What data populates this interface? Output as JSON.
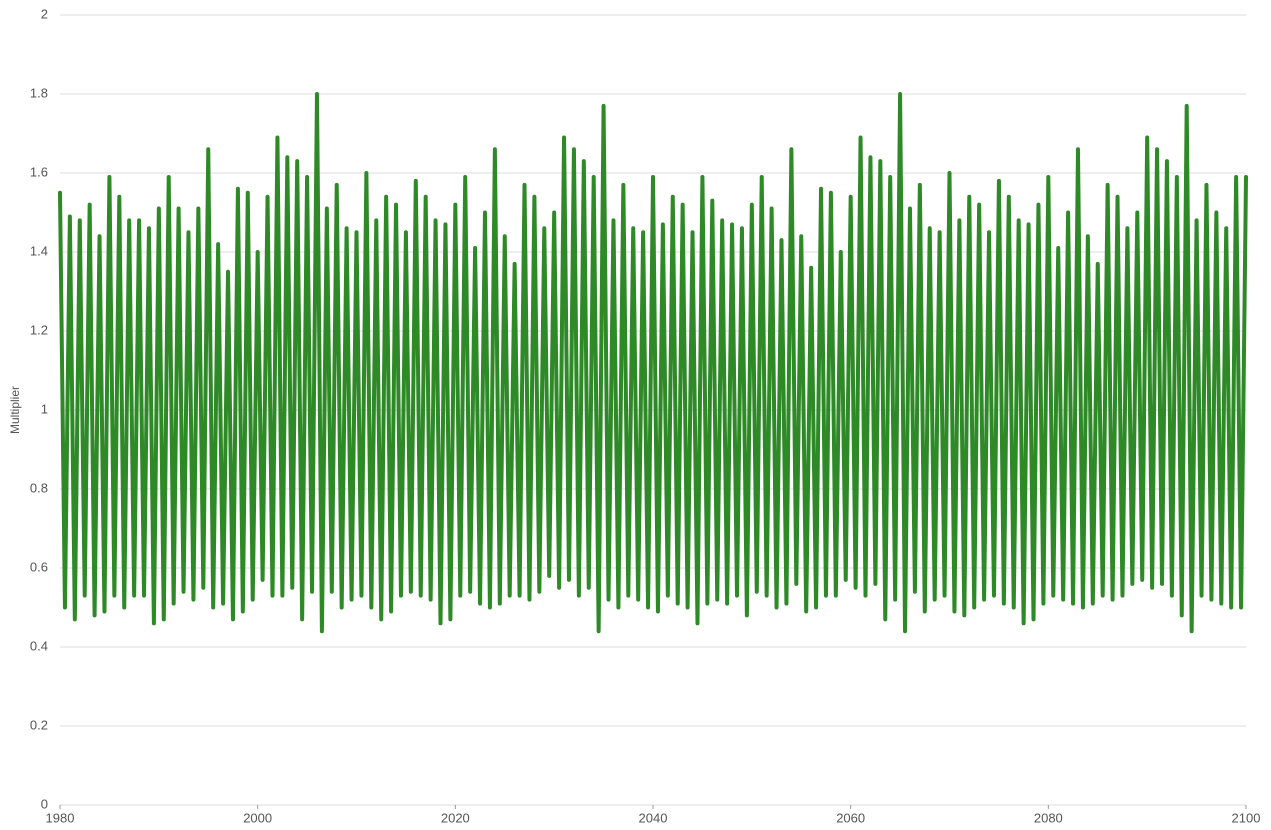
{
  "chart_data": {
    "type": "line",
    "y_label": "Multiplier",
    "color": "#2e8a27",
    "grid": true,
    "xlim": [
      1980,
      2100
    ],
    "xticks": [
      1980,
      2000,
      2020,
      2040,
      2060,
      2080,
      2100
    ],
    "ylim": [
      0,
      2
    ],
    "yticks": [
      0,
      0.2,
      0.4,
      0.6,
      0.8,
      1,
      1.2,
      1.4,
      1.6,
      1.8,
      2
    ],
    "x": [
      1980,
      1980.5,
      1981,
      1981.5,
      1982,
      1982.5,
      1983,
      1983.5,
      1984,
      1984.5,
      1985,
      1985.5,
      1986,
      1986.5,
      1987,
      1987.5,
      1988,
      1988.5,
      1989,
      1989.5,
      1990,
      1990.5,
      1991,
      1991.5,
      1992,
      1992.5,
      1993,
      1993.5,
      1994,
      1994.5,
      1995,
      1995.5,
      1996,
      1996.5,
      1997,
      1997.5,
      1998,
      1998.5,
      1999,
      1999.5,
      2000,
      2000.5,
      2001,
      2001.5,
      2002,
      2002.5,
      2003,
      2003.5,
      2004,
      2004.5,
      2005,
      2005.5,
      2006,
      2006.5,
      2007,
      2007.5,
      2008,
      2008.5,
      2009,
      2009.5,
      2010,
      2010.5,
      2011,
      2011.5,
      2012,
      2012.5,
      2013,
      2013.5,
      2014,
      2014.5,
      2015,
      2015.5,
      2016,
      2016.5,
      2017,
      2017.5,
      2018,
      2018.5,
      2019,
      2019.5,
      2020,
      2020.5,
      2021,
      2021.5,
      2022,
      2022.5,
      2023,
      2023.5,
      2024,
      2024.5,
      2025,
      2025.5,
      2026,
      2026.5,
      2027,
      2027.5,
      2028,
      2028.5,
      2029,
      2029.5,
      2030,
      2030.5,
      2031,
      2031.5,
      2032,
      2032.5,
      2033,
      2033.5,
      2034,
      2034.5,
      2035,
      2035.5,
      2036,
      2036.5,
      2037,
      2037.5,
      2038,
      2038.5,
      2039,
      2039.5,
      2040,
      2040.5,
      2041,
      2041.5,
      2042,
      2042.5,
      2043,
      2043.5,
      2044,
      2044.5,
      2045,
      2045.5,
      2046,
      2046.5,
      2047,
      2047.5,
      2048,
      2048.5,
      2049,
      2049.5,
      2050,
      2050.5,
      2051,
      2051.5,
      2052,
      2052.5,
      2053,
      2053.5,
      2054,
      2054.5,
      2055,
      2055.5,
      2056,
      2056.5,
      2057,
      2057.5,
      2058,
      2058.5,
      2059,
      2059.5,
      2060,
      2060.5,
      2061,
      2061.5,
      2062,
      2062.5,
      2063,
      2063.5,
      2064,
      2064.5,
      2065,
      2065.5,
      2066,
      2066.5,
      2067,
      2067.5,
      2068,
      2068.5,
      2069,
      2069.5,
      2070,
      2070.5,
      2071,
      2071.5,
      2072,
      2072.5,
      2073,
      2073.5,
      2074,
      2074.5,
      2075,
      2075.5,
      2076,
      2076.5,
      2077,
      2077.5,
      2078,
      2078.5,
      2079,
      2079.5,
      2080,
      2080.5,
      2081,
      2081.5,
      2082,
      2082.5,
      2083,
      2083.5,
      2084,
      2084.5,
      2085,
      2085.5,
      2086,
      2086.5,
      2087,
      2087.5,
      2088,
      2088.5,
      2089,
      2089.5,
      2090,
      2090.5,
      2091,
      2091.5,
      2092,
      2092.5,
      2093,
      2093.5,
      2094,
      2094.5,
      2095,
      2095.5,
      2096,
      2096.5,
      2097,
      2097.5,
      2098,
      2098.5,
      2099,
      2099.5,
      2100
    ],
    "values": [
      1.55,
      0.5,
      1.49,
      0.47,
      1.48,
      0.53,
      1.52,
      0.48,
      1.44,
      0.49,
      1.59,
      0.53,
      1.54,
      0.5,
      1.48,
      0.53,
      1.48,
      0.53,
      1.46,
      0.46,
      1.51,
      0.47,
      1.59,
      0.51,
      1.51,
      0.54,
      1.45,
      0.52,
      1.51,
      0.55,
      1.66,
      0.5,
      1.42,
      0.51,
      1.35,
      0.47,
      1.56,
      0.49,
      1.55,
      0.52,
      1.4,
      0.57,
      1.54,
      0.53,
      1.69,
      0.53,
      1.64,
      0.55,
      1.63,
      0.47,
      1.59,
      0.54,
      1.8,
      0.44,
      1.51,
      0.54,
      1.57,
      0.5,
      1.46,
      0.52,
      1.45,
      0.53,
      1.6,
      0.5,
      1.48,
      0.47,
      1.54,
      0.49,
      1.52,
      0.53,
      1.45,
      0.54,
      1.58,
      0.53,
      1.54,
      0.52,
      1.48,
      0.46,
      1.47,
      0.47,
      1.52,
      0.53,
      1.59,
      0.54,
      1.41,
      0.51,
      1.5,
      0.5,
      1.66,
      0.51,
      1.44,
      0.53,
      1.37,
      0.53,
      1.57,
      0.52,
      1.54,
      0.54,
      1.46,
      0.58,
      1.5,
      0.55,
      1.69,
      0.57,
      1.66,
      0.53,
      1.63,
      0.55,
      1.59,
      0.44,
      1.77,
      0.52,
      1.48,
      0.5,
      1.57,
      0.53,
      1.46,
      0.52,
      1.45,
      0.5,
      1.59,
      0.49,
      1.47,
      0.53,
      1.54,
      0.51,
      1.52,
      0.5,
      1.45,
      0.46,
      1.59,
      0.51,
      1.53,
      0.52,
      1.48,
      0.51,
      1.47,
      0.53,
      1.46,
      0.48,
      1.52,
      0.54,
      1.59,
      0.53,
      1.51,
      0.5,
      1.43,
      0.51,
      1.66,
      0.56,
      1.44,
      0.49,
      1.36,
      0.5,
      1.56,
      0.53,
      1.55,
      0.53,
      1.4,
      0.57,
      1.54,
      0.55,
      1.69,
      0.53,
      1.64,
      0.56,
      1.63,
      0.47,
      1.59,
      0.52,
      1.8,
      0.44,
      1.51,
      0.54,
      1.57,
      0.49,
      1.46,
      0.52,
      1.45,
      0.53,
      1.6,
      0.49,
      1.48,
      0.48,
      1.54,
      0.5,
      1.52,
      0.52,
      1.45,
      0.53,
      1.58,
      0.51,
      1.54,
      0.5,
      1.48,
      0.46,
      1.47,
      0.47,
      1.52,
      0.51,
      1.59,
      0.53,
      1.41,
      0.52,
      1.5,
      0.51,
      1.66,
      0.5,
      1.44,
      0.51,
      1.37,
      0.53,
      1.57,
      0.52,
      1.54,
      0.53,
      1.46,
      0.56,
      1.5,
      0.57,
      1.69,
      0.55,
      1.66,
      0.56,
      1.63,
      0.53,
      1.59,
      0.48,
      1.77,
      0.44,
      1.48,
      0.53,
      1.57,
      0.52,
      1.5,
      0.51,
      1.46,
      0.5,
      1.59,
      0.5,
      1.59
    ]
  }
}
